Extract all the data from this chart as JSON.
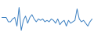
{
  "values": [
    -3,
    -3,
    -3,
    -6,
    -6,
    -4,
    -3,
    -9,
    4,
    -12,
    -5,
    -2,
    -7,
    -3,
    -1,
    -4,
    -6,
    -4,
    -5,
    -4,
    -6,
    -5,
    -6,
    -4,
    -5,
    -7,
    -4,
    -8,
    -6,
    -5,
    -9,
    -5,
    -7,
    -6,
    -5,
    3,
    -4,
    -6,
    -5,
    -7,
    -9,
    -6,
    -4
  ],
  "line_color": "#3a7fc1",
  "background_color": "#ffffff",
  "linewidth": 0.7
}
